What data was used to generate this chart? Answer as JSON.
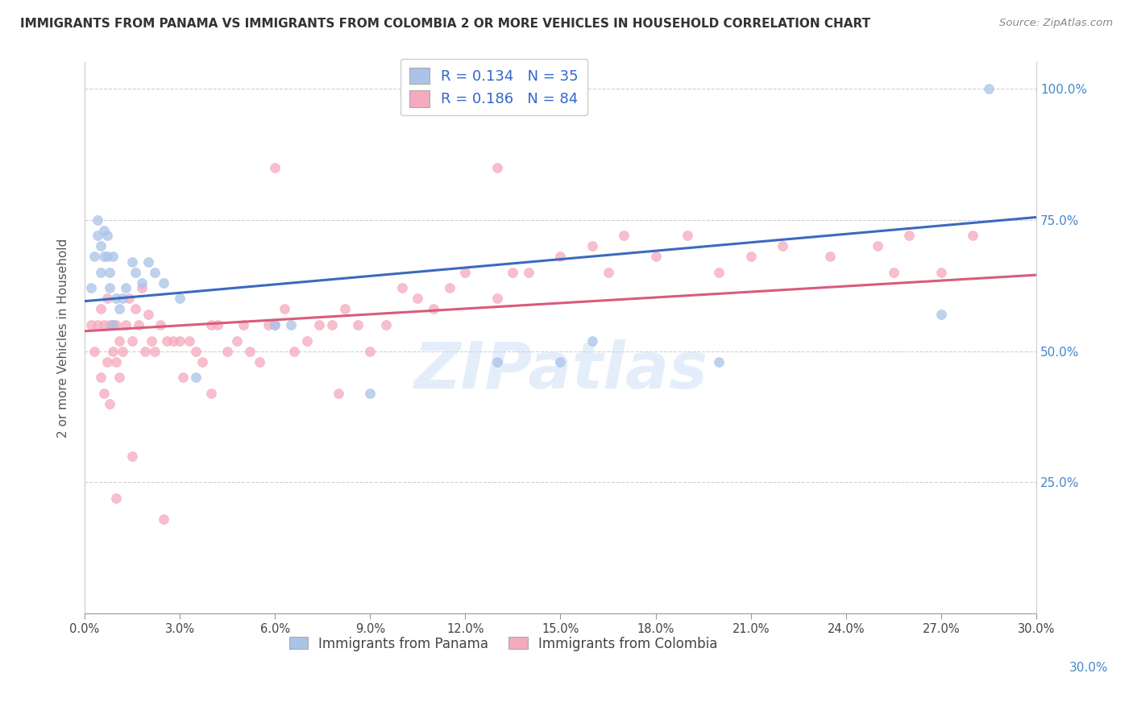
{
  "title": "IMMIGRANTS FROM PANAMA VS IMMIGRANTS FROM COLOMBIA 2 OR MORE VEHICLES IN HOUSEHOLD CORRELATION CHART",
  "source": "Source: ZipAtlas.com",
  "ylabel": "2 or more Vehicles in Household",
  "xmin": 0.0,
  "xmax": 0.3,
  "ymin": 0.0,
  "ymax": 1.05,
  "blue_R": 0.134,
  "blue_N": 35,
  "pink_R": 0.186,
  "pink_N": 84,
  "blue_color": "#aac4e8",
  "pink_color": "#f5aabe",
  "blue_line_color": "#3b6abf",
  "pink_line_color": "#d95b7a",
  "legend_label_blue": "Immigrants from Panama",
  "legend_label_pink": "Immigrants from Colombia",
  "blue_points_x": [
    0.002,
    0.003,
    0.004,
    0.004,
    0.005,
    0.005,
    0.006,
    0.006,
    0.007,
    0.007,
    0.008,
    0.008,
    0.009,
    0.009,
    0.01,
    0.011,
    0.012,
    0.013,
    0.015,
    0.016,
    0.018,
    0.02,
    0.022,
    0.025,
    0.03,
    0.035,
    0.06,
    0.065,
    0.09,
    0.13,
    0.15,
    0.16,
    0.2,
    0.27,
    0.285
  ],
  "blue_points_y": [
    0.62,
    0.68,
    0.72,
    0.75,
    0.7,
    0.65,
    0.68,
    0.73,
    0.72,
    0.68,
    0.65,
    0.62,
    0.68,
    0.55,
    0.6,
    0.58,
    0.6,
    0.62,
    0.67,
    0.65,
    0.63,
    0.67,
    0.65,
    0.63,
    0.6,
    0.45,
    0.55,
    0.55,
    0.42,
    0.48,
    0.48,
    0.52,
    0.48,
    0.57,
    1.0
  ],
  "pink_points_x": [
    0.002,
    0.003,
    0.004,
    0.005,
    0.005,
    0.006,
    0.006,
    0.007,
    0.007,
    0.008,
    0.008,
    0.009,
    0.009,
    0.01,
    0.01,
    0.011,
    0.011,
    0.012,
    0.013,
    0.014,
    0.015,
    0.016,
    0.017,
    0.018,
    0.019,
    0.02,
    0.021,
    0.022,
    0.024,
    0.026,
    0.028,
    0.03,
    0.031,
    0.033,
    0.035,
    0.037,
    0.04,
    0.042,
    0.045,
    0.048,
    0.05,
    0.052,
    0.055,
    0.058,
    0.06,
    0.063,
    0.066,
    0.07,
    0.074,
    0.078,
    0.082,
    0.086,
    0.09,
    0.095,
    0.1,
    0.105,
    0.11,
    0.115,
    0.12,
    0.13,
    0.135,
    0.14,
    0.15,
    0.16,
    0.17,
    0.18,
    0.19,
    0.2,
    0.21,
    0.22,
    0.235,
    0.25,
    0.255,
    0.26,
    0.27,
    0.28,
    0.01,
    0.015,
    0.025,
    0.04,
    0.06,
    0.08,
    0.13,
    0.165
  ],
  "pink_points_y": [
    0.55,
    0.5,
    0.55,
    0.58,
    0.45,
    0.55,
    0.42,
    0.6,
    0.48,
    0.55,
    0.4,
    0.55,
    0.5,
    0.55,
    0.48,
    0.52,
    0.45,
    0.5,
    0.55,
    0.6,
    0.52,
    0.58,
    0.55,
    0.62,
    0.5,
    0.57,
    0.52,
    0.5,
    0.55,
    0.52,
    0.52,
    0.52,
    0.45,
    0.52,
    0.5,
    0.48,
    0.55,
    0.55,
    0.5,
    0.52,
    0.55,
    0.5,
    0.48,
    0.55,
    0.55,
    0.58,
    0.5,
    0.52,
    0.55,
    0.55,
    0.58,
    0.55,
    0.5,
    0.55,
    0.62,
    0.6,
    0.58,
    0.62,
    0.65,
    0.6,
    0.65,
    0.65,
    0.68,
    0.7,
    0.72,
    0.68,
    0.72,
    0.65,
    0.68,
    0.7,
    0.68,
    0.7,
    0.65,
    0.72,
    0.65,
    0.72,
    0.22,
    0.3,
    0.18,
    0.42,
    0.85,
    0.42,
    0.85,
    0.65
  ],
  "watermark": "ZIPatlas",
  "background_color": "#ffffff",
  "grid_color": "#d0d0d0",
  "marker_size": 75,
  "marker_linewidth": 0.5
}
